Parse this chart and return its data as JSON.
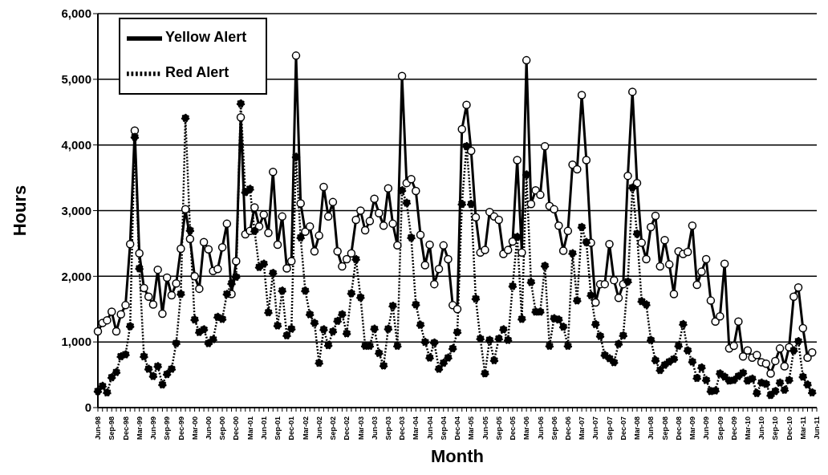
{
  "chart_data": {
    "type": "line",
    "xlabel": "Month",
    "ylabel": "Hours",
    "categories": [
      "Jun-98",
      null,
      null,
      "Sep-98",
      null,
      null,
      "Dec-98",
      null,
      null,
      "Mar-99",
      null,
      null,
      "Jun-99",
      null,
      null,
      "Sep-99",
      null,
      null,
      "Dec-99",
      null,
      null,
      "Mar-00",
      null,
      null,
      "Jun-00",
      null,
      null,
      "Sep-00",
      null,
      null,
      "Dec-00",
      null,
      null,
      "Mar-01",
      null,
      null,
      "Jun-01",
      null,
      null,
      "Sep-01",
      null,
      null,
      "Dec-01",
      null,
      null,
      "Mar-02",
      null,
      null,
      "Jun-02",
      null,
      null,
      "Sep-02",
      null,
      null,
      "Dec-02",
      null,
      null,
      "Mar-03",
      null,
      null,
      "Jun-03",
      null,
      null,
      "Sep-03",
      null,
      null,
      "Dec-03",
      null,
      null,
      "Mar-04",
      null,
      null,
      "Jun-04",
      null,
      null,
      "Sep-04",
      null,
      null,
      "Dec-04",
      null,
      null,
      "Mar-05",
      null,
      null,
      "Jun-05",
      null,
      null,
      "Sep-05",
      null,
      null,
      "Dec-05",
      null,
      null,
      "Mar-06",
      null,
      null,
      "Jun-06",
      null,
      null,
      "Sep-06",
      null,
      null,
      "Dec-06",
      null,
      null,
      "Mar-07",
      null,
      null,
      "Jun-07",
      null,
      null,
      "Sep-07",
      null,
      null,
      "Dec-07",
      null,
      null,
      "Mar-08",
      null,
      null,
      "Jun-08",
      null,
      null,
      "Sep-08",
      null,
      null,
      "Dec-08",
      null,
      null,
      "Mar-09",
      null,
      null,
      "Jun-09",
      null,
      null,
      "Sep-09",
      null,
      null,
      "Dec-09",
      null,
      null,
      "Mar-10",
      null,
      null,
      "Jun-10",
      null,
      null,
      "Sep-10",
      null,
      null,
      "Dec-10",
      null,
      null,
      "Mar-11",
      null,
      null,
      "Jun-11"
    ],
    "series": [
      {
        "name": "Yellow Alert",
        "color": "#000000",
        "line_style": "solid",
        "values": [
          1160,
          1290,
          1330,
          1460,
          1160,
          1420,
          1560,
          2490,
          4220,
          2350,
          1820,
          1690,
          1570,
          2100,
          1430,
          1980,
          1710,
          1890,
          2420,
          3020,
          2570,
          2000,
          1810,
          2520,
          2410,
          2080,
          2110,
          2440,
          2800,
          1730,
          2230,
          4420,
          2640,
          2690,
          3050,
          2760,
          2940,
          2660,
          3590,
          2480,
          2910,
          2120,
          2230,
          5360,
          3110,
          2680,
          2760,
          2380,
          2620,
          3360,
          2910,
          3130,
          2380,
          2150,
          2260,
          2350,
          2860,
          3000,
          2700,
          2840,
          3180,
          2960,
          2770,
          3340,
          2800,
          2470,
          5050,
          3420,
          3480,
          3300,
          2630,
          2170,
          2480,
          1880,
          2110,
          2470,
          2260,
          1560,
          1500,
          4240,
          4610,
          3910,
          2900,
          2360,
          2400,
          2980,
          2910,
          2860,
          2340,
          2400,
          2530,
          3770,
          2360,
          5290,
          3100,
          3310,
          3240,
          3980,
          3070,
          3020,
          2770,
          2390,
          2690,
          3700,
          3630,
          4760,
          3770,
          2510,
          1600,
          1880,
          1880,
          2490,
          1940,
          1670,
          1880,
          3530,
          4810,
          3420,
          2510,
          2260,
          2750,
          2920,
          2150,
          2550,
          2180,
          1730,
          2380,
          2340,
          2370,
          2770,
          1870,
          2070,
          2260,
          1630,
          1310,
          1390,
          2190,
          900,
          940,
          1310,
          780,
          870,
          760,
          800,
          690,
          670,
          520,
          710,
          900,
          630,
          920,
          1690,
          1830,
          1210,
          760,
          840,
          null
        ]
      },
      {
        "name": "Red Alert",
        "color": "#000000",
        "line_style": "dotted",
        "values": [
          250,
          330,
          230,
          460,
          540,
          780,
          810,
          1240,
          4120,
          2120,
          780,
          590,
          480,
          630,
          350,
          510,
          590,
          980,
          1730,
          4410,
          2700,
          1340,
          1150,
          1190,
          980,
          1040,
          1380,
          1350,
          1730,
          1890,
          1990,
          4630,
          3280,
          3330,
          2690,
          2140,
          2190,
          1450,
          2050,
          1250,
          1780,
          1100,
          1200,
          3820,
          2590,
          1780,
          1420,
          1290,
          680,
          1190,
          950,
          1160,
          1320,
          1420,
          1130,
          1740,
          2260,
          1680,
          940,
          940,
          1200,
          830,
          640,
          1200,
          1550,
          940,
          3310,
          3120,
          2590,
          1570,
          1260,
          1000,
          760,
          990,
          590,
          680,
          760,
          900,
          1150,
          3100,
          3980,
          3100,
          1660,
          1050,
          520,
          1030,
          720,
          1050,
          1190,
          1030,
          1850,
          2600,
          1350,
          3550,
          1910,
          1460,
          1460,
          2160,
          940,
          1360,
          1340,
          1230,
          940,
          2350,
          1630,
          2750,
          2520,
          1710,
          1270,
          1090,
          800,
          750,
          690,
          970,
          1100,
          1920,
          3350,
          2650,
          1620,
          1570,
          1030,
          720,
          570,
          650,
          700,
          740,
          940,
          1270,
          870,
          700,
          450,
          610,
          420,
          250,
          260,
          520,
          470,
          410,
          420,
          480,
          530,
          410,
          440,
          220,
          380,
          360,
          190,
          250,
          380,
          270,
          420,
          870,
          1010,
          470,
          350,
          230,
          null
        ]
      }
    ],
    "ylim": [
      0,
      6000
    ],
    "yticks": [
      0,
      {
        "value": 1000,
        "label": "1,000"
      },
      {
        "value": 2000,
        "label": "2,000"
      },
      {
        "value": 3000,
        "label": "3,000"
      },
      {
        "value": 4000,
        "label": "4,000"
      },
      {
        "value": 5000,
        "label": "5,000"
      },
      {
        "value": 6000,
        "label": "6,000"
      }
    ],
    "grid": "y",
    "legend": "top left",
    "marker": "circle"
  }
}
